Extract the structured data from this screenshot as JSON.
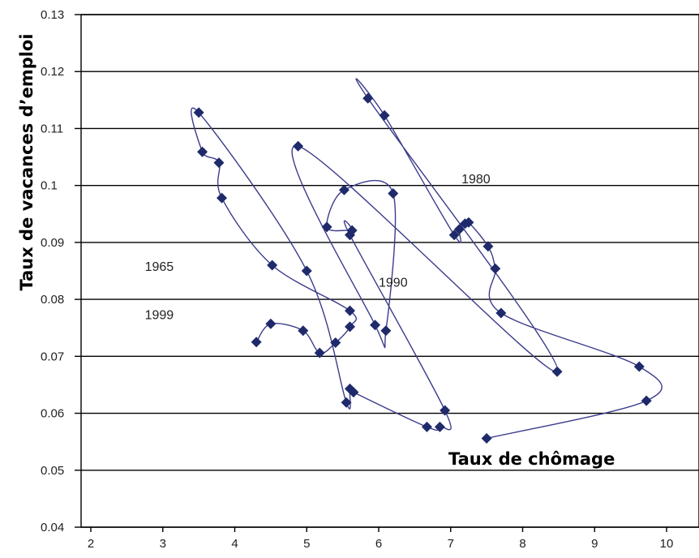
{
  "chart_data": {
    "type": "scatter",
    "title": "",
    "xlabel": "Taux de chômage",
    "ylabel": "Taux de vacances d’emploi",
    "xlim": [
      2,
      10.5
    ],
    "ylim": [
      0.04,
      0.13
    ],
    "x_ticks": [
      "2",
      "3",
      "4",
      "5",
      "6",
      "7",
      "8",
      "9",
      "10"
    ],
    "y_ticks": [
      "0.04",
      "0.05",
      "0.06",
      "0.07",
      "0.08",
      "0.09",
      "0.1",
      "0.11",
      "0.12",
      "0.13"
    ],
    "grid": "horizontal",
    "connected": true,
    "colors": {
      "line": "#3b3b8c",
      "marker": "#1f2a6b"
    },
    "points": [
      [
        4.3,
        0.0725
      ],
      [
        4.5,
        0.0757
      ],
      [
        4.95,
        0.0745
      ],
      [
        5.18,
        0.0706
      ],
      [
        5.4,
        0.0724
      ],
      [
        5.6,
        0.0752
      ],
      [
        5.6,
        0.078
      ],
      [
        4.52,
        0.086
      ],
      [
        3.82,
        0.0978
      ],
      [
        3.78,
        0.104
      ],
      [
        3.55,
        0.1059
      ],
      [
        3.5,
        0.1128
      ],
      [
        5.0,
        0.085
      ],
      [
        5.55,
        0.0619
      ],
      [
        5.6,
        0.0643
      ],
      [
        5.65,
        0.0637
      ],
      [
        6.67,
        0.0576
      ],
      [
        6.85,
        0.0576
      ],
      [
        6.92,
        0.0605
      ],
      [
        5.6,
        0.0913
      ],
      [
        5.63,
        0.0921
      ],
      [
        5.28,
        0.0927
      ],
      [
        5.52,
        0.0992
      ],
      [
        6.2,
        0.0986
      ],
      [
        6.1,
        0.0745
      ],
      [
        5.95,
        0.0755
      ],
      [
        4.88,
        0.1069
      ],
      [
        8.48,
        0.0673
      ],
      [
        5.85,
        0.1153
      ],
      [
        6.08,
        0.1123
      ],
      [
        7.05,
        0.0913
      ],
      [
        7.12,
        0.0923
      ],
      [
        7.2,
        0.0933
      ],
      [
        7.25,
        0.0935
      ],
      [
        7.52,
        0.0893
      ],
      [
        7.62,
        0.0854
      ],
      [
        7.7,
        0.0776
      ],
      [
        9.62,
        0.0682
      ],
      [
        9.72,
        0.0622
      ],
      [
        7.5,
        0.0556
      ]
    ],
    "annotations": [
      {
        "text": "1965",
        "x": 2.75,
        "y": 0.085
      },
      {
        "text": "1999",
        "x": 2.75,
        "y": 0.0765
      },
      {
        "text": "1990",
        "x": 6.0,
        "y": 0.0822
      },
      {
        "text": "1980",
        "x": 7.15,
        "y": 0.1004
      }
    ]
  }
}
